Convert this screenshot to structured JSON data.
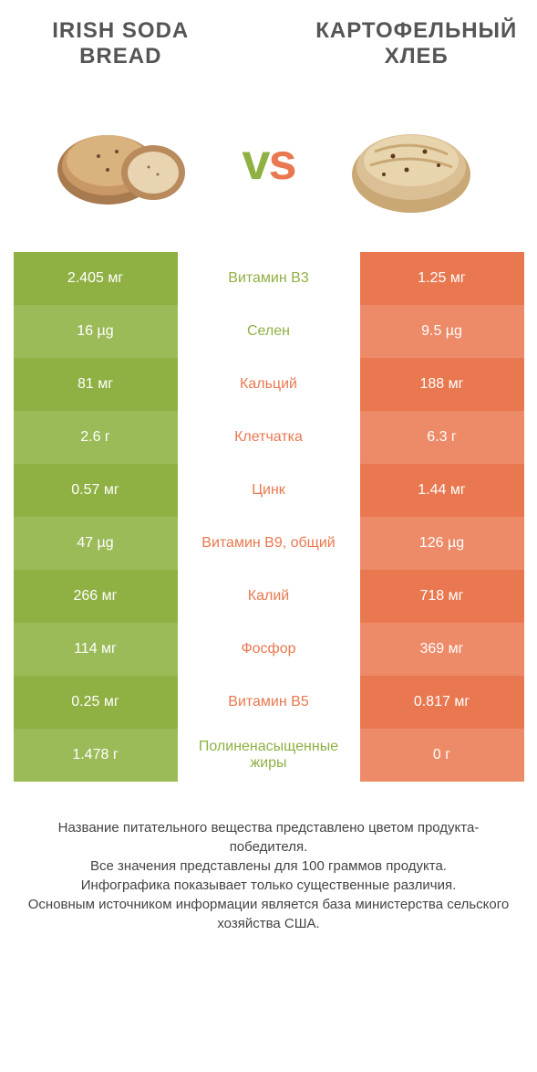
{
  "header": {
    "left_title": "IRISH SODA BREAD",
    "right_title": "КАРТОФЕЛЬНЫЙ ХЛЕБ",
    "vs": "vs"
  },
  "colors": {
    "green": "#8fb043",
    "green_alt": "#9bbb59",
    "orange": "#e97850",
    "orange_alt": "#ed8a68",
    "text_gray": "#555555"
  },
  "rows": [
    {
      "left": "2.405 мг",
      "mid": "Витамин B3",
      "right": "1.25 мг",
      "winner": "left"
    },
    {
      "left": "16 µg",
      "mid": "Селен",
      "right": "9.5 µg",
      "winner": "left"
    },
    {
      "left": "81 мг",
      "mid": "Кальций",
      "right": "188 мг",
      "winner": "right"
    },
    {
      "left": "2.6 г",
      "mid": "Клетчатка",
      "right": "6.3 г",
      "winner": "right"
    },
    {
      "left": "0.57 мг",
      "mid": "Цинк",
      "right": "1.44 мг",
      "winner": "right"
    },
    {
      "left": "47 µg",
      "mid": "Витамин B9, общий",
      "right": "126 µg",
      "winner": "right"
    },
    {
      "left": "266 мг",
      "mid": "Калий",
      "right": "718 мг",
      "winner": "right"
    },
    {
      "left": "114 мг",
      "mid": "Фосфор",
      "right": "369 мг",
      "winner": "right"
    },
    {
      "left": "0.25 мг",
      "mid": "Витамин B5",
      "right": "0.817 мг",
      "winner": "right"
    },
    {
      "left": "1.478 г",
      "mid": "Полиненасыщенные жиры",
      "right": "0 г",
      "winner": "left"
    }
  ],
  "footer": {
    "line1": "Название питательного вещества представлено цветом продукта-победителя.",
    "line2": "Все значения представлены для 100 граммов продукта.",
    "line3": "Инфографика показывает только существенные различия.",
    "line4": "Основным источником информации является база министерства сельского хозяйства США."
  }
}
